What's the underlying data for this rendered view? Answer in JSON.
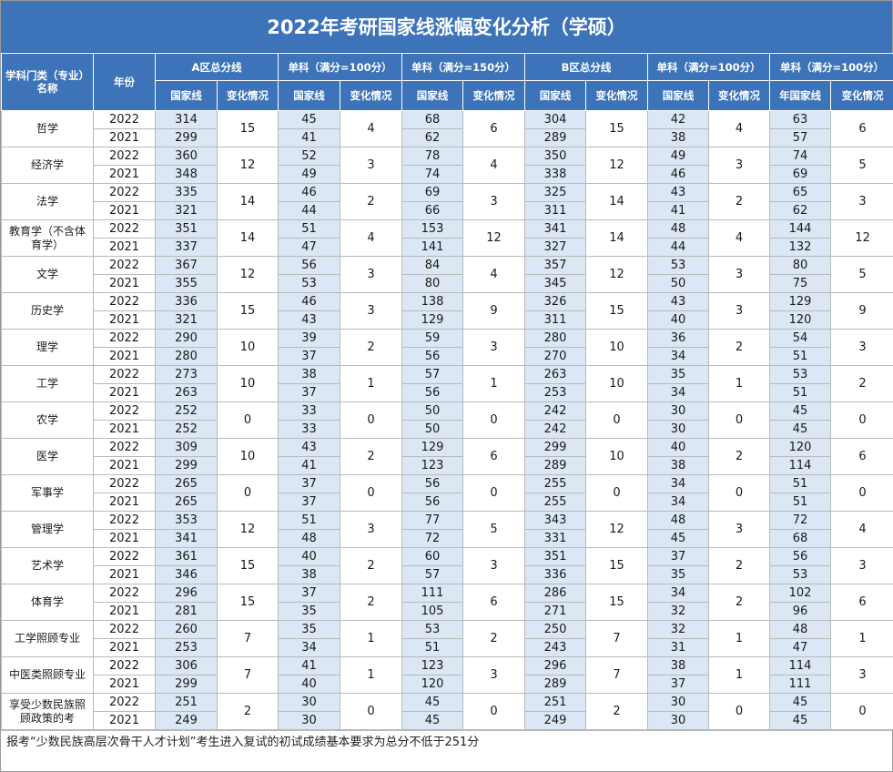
{
  "title": "2022年考研国家线涨幅变化分析（学硕）",
  "colors": {
    "header_bg": "#3d73b8",
    "value_bg": "#dbe7f4"
  },
  "headers": {
    "subject": "学科门类（专业）名称",
    "year": "年份",
    "group_a_total": "A区总分线",
    "group_a_s1": "单科（满分=100分）",
    "group_a_s2": "单科（满分=150分）",
    "group_b_total": "B区总分线",
    "group_b_s1": "单科（满分=100分）",
    "group_b_s2": "单科（满分=100分）",
    "national_line": "国家线",
    "change": "变化情况",
    "national_line_year": "年国家线"
  },
  "rows": [
    {
      "subject": "哲学",
      "y1": "2022",
      "y2": "2021",
      "a": [
        "314",
        "299"
      ],
      "a_c": "15",
      "s1": [
        "45",
        "41"
      ],
      "s1_c": "4",
      "s2": [
        "68",
        "62"
      ],
      "s2_c": "6",
      "b": [
        "304",
        "289"
      ],
      "b_c": "15",
      "t1": [
        "42",
        "38"
      ],
      "t1_c": "4",
      "t2": [
        "63",
        "57"
      ],
      "t2_c": "6"
    },
    {
      "subject": "经济学",
      "y1": "2022",
      "y2": "2021",
      "a": [
        "360",
        "348"
      ],
      "a_c": "12",
      "s1": [
        "52",
        "49"
      ],
      "s1_c": "3",
      "s2": [
        "78",
        "74"
      ],
      "s2_c": "4",
      "b": [
        "350",
        "338"
      ],
      "b_c": "12",
      "t1": [
        "49",
        "46"
      ],
      "t1_c": "3",
      "t2": [
        "74",
        "69"
      ],
      "t2_c": "5"
    },
    {
      "subject": "法学",
      "y1": "2022",
      "y2": "2021",
      "a": [
        "335",
        "321"
      ],
      "a_c": "14",
      "s1": [
        "46",
        "44"
      ],
      "s1_c": "2",
      "s2": [
        "69",
        "66"
      ],
      "s2_c": "3",
      "b": [
        "325",
        "311"
      ],
      "b_c": "14",
      "t1": [
        "43",
        "41"
      ],
      "t1_c": "2",
      "t2": [
        "65",
        "62"
      ],
      "t2_c": "3"
    },
    {
      "subject": "教育学（不含体育学）",
      "y1": "2022",
      "y2": "2021",
      "a": [
        "351",
        "337"
      ],
      "a_c": "14",
      "s1": [
        "51",
        "47"
      ],
      "s1_c": "4",
      "s2": [
        "153",
        "141"
      ],
      "s2_c": "12",
      "b": [
        "341",
        "327"
      ],
      "b_c": "14",
      "t1": [
        "48",
        "44"
      ],
      "t1_c": "4",
      "t2": [
        "144",
        "132"
      ],
      "t2_c": "12"
    },
    {
      "subject": "文学",
      "y1": "2022",
      "y2": "2021",
      "a": [
        "367",
        "355"
      ],
      "a_c": "12",
      "s1": [
        "56",
        "53"
      ],
      "s1_c": "3",
      "s2": [
        "84",
        "80"
      ],
      "s2_c": "4",
      "b": [
        "357",
        "345"
      ],
      "b_c": "12",
      "t1": [
        "53",
        "50"
      ],
      "t1_c": "3",
      "t2": [
        "80",
        "75"
      ],
      "t2_c": "5"
    },
    {
      "subject": "历史学",
      "y1": "2022",
      "y2": "2021",
      "a": [
        "336",
        "321"
      ],
      "a_c": "15",
      "s1": [
        "46",
        "43"
      ],
      "s1_c": "3",
      "s2": [
        "138",
        "129"
      ],
      "s2_c": "9",
      "b": [
        "326",
        "311"
      ],
      "b_c": "15",
      "t1": [
        "43",
        "40"
      ],
      "t1_c": "3",
      "t2": [
        "129",
        "120"
      ],
      "t2_c": "9"
    },
    {
      "subject": "理学",
      "y1": "2022",
      "y2": "2021",
      "a": [
        "290",
        "280"
      ],
      "a_c": "10",
      "s1": [
        "39",
        "37"
      ],
      "s1_c": "2",
      "s2": [
        "59",
        "56"
      ],
      "s2_c": "3",
      "b": [
        "280",
        "270"
      ],
      "b_c": "10",
      "t1": [
        "36",
        "34"
      ],
      "t1_c": "2",
      "t2": [
        "54",
        "51"
      ],
      "t2_c": "3"
    },
    {
      "subject": "工学",
      "y1": "2022",
      "y2": "2021",
      "a": [
        "273",
        "263"
      ],
      "a_c": "10",
      "s1": [
        "38",
        "37"
      ],
      "s1_c": "1",
      "s2": [
        "57",
        "56"
      ],
      "s2_c": "1",
      "b": [
        "263",
        "253"
      ],
      "b_c": "10",
      "t1": [
        "35",
        "34"
      ],
      "t1_c": "1",
      "t2": [
        "53",
        "51"
      ],
      "t2_c": "2"
    },
    {
      "subject": "农学",
      "y1": "2022",
      "y2": "2021",
      "a": [
        "252",
        "252"
      ],
      "a_c": "0",
      "s1": [
        "33",
        "33"
      ],
      "s1_c": "0",
      "s2": [
        "50",
        "50"
      ],
      "s2_c": "0",
      "b": [
        "242",
        "242"
      ],
      "b_c": "0",
      "t1": [
        "30",
        "30"
      ],
      "t1_c": "0",
      "t2": [
        "45",
        "45"
      ],
      "t2_c": "0"
    },
    {
      "subject": "医学",
      "y1": "2022",
      "y2": "2021",
      "a": [
        "309",
        "299"
      ],
      "a_c": "10",
      "s1": [
        "43",
        "41"
      ],
      "s1_c": "2",
      "s2": [
        "129",
        "123"
      ],
      "s2_c": "6",
      "b": [
        "299",
        "289"
      ],
      "b_c": "10",
      "t1": [
        "40",
        "38"
      ],
      "t1_c": "2",
      "t2": [
        "120",
        "114"
      ],
      "t2_c": "6"
    },
    {
      "subject": "军事学",
      "y1": "2022",
      "y2": "2021",
      "a": [
        "265",
        "265"
      ],
      "a_c": "0",
      "s1": [
        "37",
        "37"
      ],
      "s1_c": "0",
      "s2": [
        "56",
        "56"
      ],
      "s2_c": "0",
      "b": [
        "255",
        "255"
      ],
      "b_c": "0",
      "t1": [
        "34",
        "34"
      ],
      "t1_c": "0",
      "t2": [
        "51",
        "51"
      ],
      "t2_c": "0"
    },
    {
      "subject": "管理学",
      "y1": "2022",
      "y2": "2021",
      "a": [
        "353",
        "341"
      ],
      "a_c": "12",
      "s1": [
        "51",
        "48"
      ],
      "s1_c": "3",
      "s2": [
        "77",
        "72"
      ],
      "s2_c": "5",
      "b": [
        "343",
        "331"
      ],
      "b_c": "12",
      "t1": [
        "48",
        "45"
      ],
      "t1_c": "3",
      "t2": [
        "72",
        "68"
      ],
      "t2_c": "4"
    },
    {
      "subject": "艺术学",
      "y1": "2022",
      "y2": "2021",
      "a": [
        "361",
        "346"
      ],
      "a_c": "15",
      "s1": [
        "40",
        "38"
      ],
      "s1_c": "2",
      "s2": [
        "60",
        "57"
      ],
      "s2_c": "3",
      "b": [
        "351",
        "336"
      ],
      "b_c": "15",
      "t1": [
        "37",
        "35"
      ],
      "t1_c": "2",
      "t2": [
        "56",
        "53"
      ],
      "t2_c": "3"
    },
    {
      "subject": "体育学",
      "y1": "2022",
      "y2": "2021",
      "a": [
        "296",
        "281"
      ],
      "a_c": "15",
      "s1": [
        "37",
        "35"
      ],
      "s1_c": "2",
      "s2": [
        "111",
        "105"
      ],
      "s2_c": "6",
      "b": [
        "286",
        "271"
      ],
      "b_c": "15",
      "t1": [
        "34",
        "32"
      ],
      "t1_c": "2",
      "t2": [
        "102",
        "96"
      ],
      "t2_c": "6"
    },
    {
      "subject": "工学照顾专业",
      "y1": "2022",
      "y2": "2021",
      "a": [
        "260",
        "253"
      ],
      "a_c": "7",
      "s1": [
        "35",
        "34"
      ],
      "s1_c": "1",
      "s2": [
        "53",
        "51"
      ],
      "s2_c": "2",
      "b": [
        "250",
        "243"
      ],
      "b_c": "7",
      "t1": [
        "32",
        "31"
      ],
      "t1_c": "1",
      "t2": [
        "48",
        "47"
      ],
      "t2_c": "1"
    },
    {
      "subject": "中医类照顾专业",
      "y1": "2022",
      "y2": "2021",
      "a": [
        "306",
        "299"
      ],
      "a_c": "7",
      "s1": [
        "41",
        "40"
      ],
      "s1_c": "1",
      "s2": [
        "123",
        "120"
      ],
      "s2_c": "3",
      "b": [
        "296",
        "289"
      ],
      "b_c": "7",
      "t1": [
        "38",
        "37"
      ],
      "t1_c": "1",
      "t2": [
        "114",
        "111"
      ],
      "t2_c": "3"
    },
    {
      "subject": "享受少数民族照顾政策的考",
      "y1": "2022",
      "y2": "2021",
      "a": [
        "251",
        "249"
      ],
      "a_c": "2",
      "s1": [
        "30",
        "30"
      ],
      "s1_c": "0",
      "s2": [
        "45",
        "45"
      ],
      "s2_c": "0",
      "b": [
        "251",
        "249"
      ],
      "b_c": "2",
      "t1": [
        "30",
        "30"
      ],
      "t1_c": "0",
      "t2": [
        "45",
        "45"
      ],
      "t2_c": "0"
    }
  ],
  "footnote": "报考“少数民族高层次骨干人才计划”考生进入复试的初试成绩基本要求为总分不低于251分"
}
